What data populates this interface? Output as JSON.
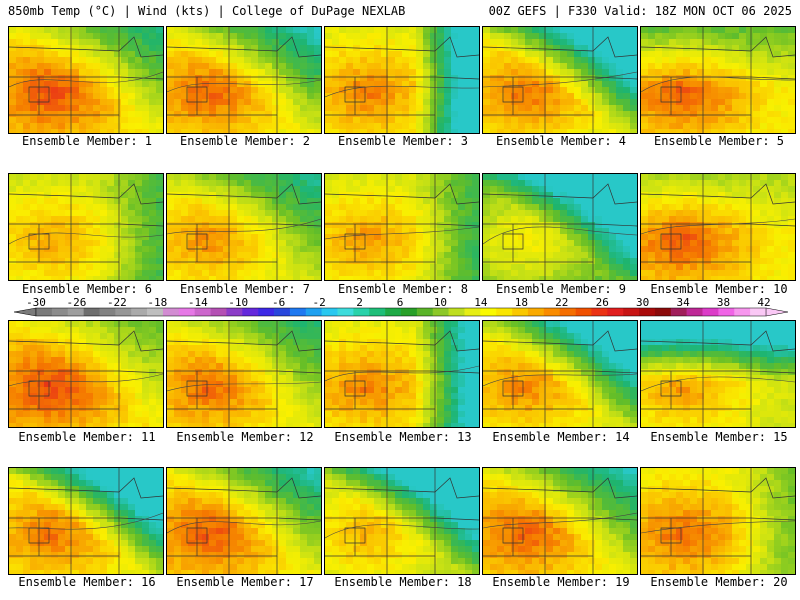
{
  "header": {
    "left": "850mb Temp (°C) | Wind (kts) | College of DuPage NEXLAB",
    "right": "00Z GEFS | F330 Valid: 18Z MON OCT 06 2025"
  },
  "legend": {
    "ticks": [
      "-30",
      "-26",
      "-22",
      "-18",
      "-14",
      "-10",
      "-6",
      "-2",
      "2",
      "6",
      "10",
      "14",
      "18",
      "22",
      "26",
      "30",
      "34",
      "38",
      "42"
    ],
    "colors": [
      "#7a7a7a",
      "#8c8c8c",
      "#9e9e9e",
      "#6e6e6e",
      "#828282",
      "#969696",
      "#aaaaaa",
      "#bebebe",
      "#d28cd2",
      "#e678e6",
      "#cc66cc",
      "#b450b4",
      "#8c3cc8",
      "#6428dc",
      "#3c28e6",
      "#2846dc",
      "#1e78f0",
      "#1ea0f0",
      "#28c8f0",
      "#3cdcdc",
      "#28d2aa",
      "#1ebe78",
      "#1eaa46",
      "#28a028",
      "#5ab428",
      "#8cc828",
      "#bede1e",
      "#e6ee14",
      "#fafa00",
      "#fae600",
      "#fac800",
      "#faaa00",
      "#fa8c00",
      "#f56e00",
      "#f05000",
      "#eb3214",
      "#e11e1e",
      "#c81414",
      "#aa0a0a",
      "#8c0a0a",
      "#a01e5a",
      "#be2896",
      "#dc3cc8",
      "#f064e6",
      "#f796ee",
      "#fac8f5"
    ]
  },
  "panels": [
    {
      "label": "Ensemble Member: 1",
      "warm": 0.8,
      "cool": "ne",
      "coolAmt": 0.3
    },
    {
      "label": "Ensemble Member: 2",
      "warm": 0.75,
      "cool": "ne",
      "coolAmt": 0.35
    },
    {
      "label": "Ensemble Member: 3",
      "warm": 0.7,
      "cool": "e",
      "coolAmt": 0.75
    },
    {
      "label": "Ensemble Member: 4",
      "warm": 0.72,
      "cool": "ne",
      "coolAmt": 0.6
    },
    {
      "label": "Ensemble Member: 5",
      "warm": 0.78,
      "cool": "n",
      "coolAmt": 0.25
    },
    {
      "label": "Ensemble Member: 6",
      "warm": 0.62,
      "cool": "e",
      "coolAmt": 0.2
    },
    {
      "label": "Ensemble Member: 7",
      "warm": 0.66,
      "cool": "ne",
      "coolAmt": 0.25
    },
    {
      "label": "Ensemble Member: 8",
      "warm": 0.65,
      "cool": "e",
      "coolAmt": 0.25
    },
    {
      "label": "Ensemble Member: 9",
      "warm": 0.4,
      "cool": "ne",
      "coolAmt": 0.55
    },
    {
      "label": "Ensemble Member: 10",
      "warm": 0.78,
      "cool": "n",
      "coolAmt": 0.15
    },
    {
      "label": "Ensemble Member: 11",
      "warm": 0.82,
      "cool": "ne",
      "coolAmt": 0.2
    },
    {
      "label": "Ensemble Member: 12",
      "warm": 0.74,
      "cool": "ne",
      "coolAmt": 0.25
    },
    {
      "label": "Ensemble Member: 13",
      "warm": 0.7,
      "cool": "e",
      "coolAmt": 0.6
    },
    {
      "label": "Ensemble Member: 14",
      "warm": 0.68,
      "cool": "ne",
      "coolAmt": 0.55
    },
    {
      "label": "Ensemble Member: 15",
      "warm": 0.64,
      "cool": "n",
      "coolAmt": 0.65
    },
    {
      "label": "Ensemble Member: 16",
      "warm": 0.72,
      "cool": "ne",
      "coolAmt": 0.65
    },
    {
      "label": "Ensemble Member: 17",
      "warm": 0.78,
      "cool": "ne",
      "coolAmt": 0.35
    },
    {
      "label": "Ensemble Member: 18",
      "warm": 0.58,
      "cool": "ne",
      "coolAmt": 0.6
    },
    {
      "label": "Ensemble Member: 19",
      "warm": 0.76,
      "cool": "ne",
      "coolAmt": 0.35
    },
    {
      "label": "Ensemble Member: 20",
      "warm": 0.74,
      "cool": "e",
      "coolAmt": 0.2
    }
  ]
}
